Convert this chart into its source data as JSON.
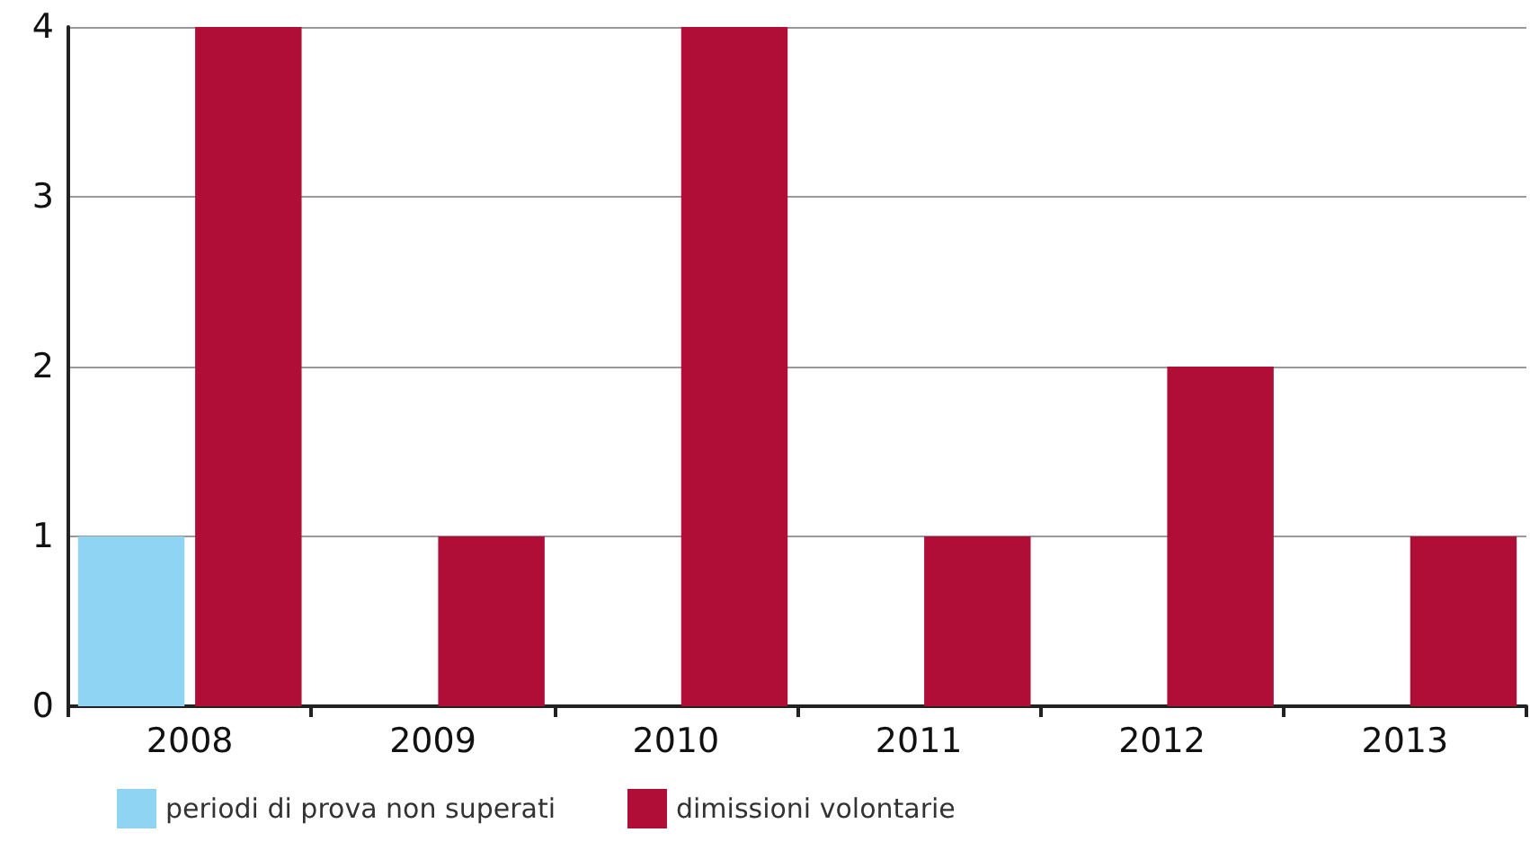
{
  "chart_data": {
    "type": "bar",
    "categories": [
      "2008",
      "2009",
      "2010",
      "2011",
      "2012",
      "2013"
    ],
    "series": [
      {
        "name": "periodi di prova non superati",
        "color": "#8fd5f3",
        "values": [
          1,
          0,
          0,
          0,
          0,
          0
        ]
      },
      {
        "name": "dimissioni volontarie",
        "color": "#b00e36",
        "values": [
          4,
          1,
          4,
          1,
          2,
          1
        ]
      }
    ],
    "ylim": [
      0,
      4
    ],
    "yticks": [
      0,
      1,
      2,
      3,
      4
    ],
    "grid": "y",
    "legend": "bottom left"
  }
}
